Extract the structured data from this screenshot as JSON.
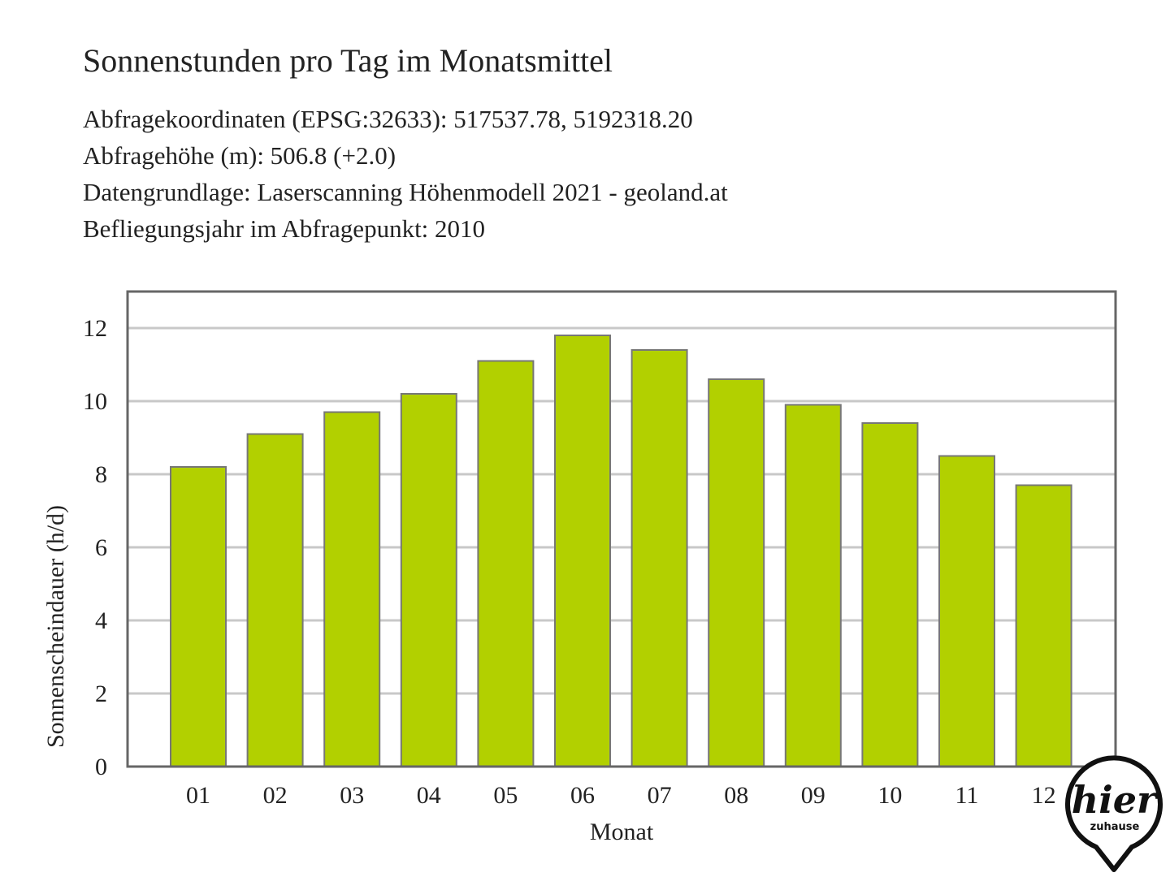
{
  "header": {
    "title": "Sonnenstunden pro Tag im Monatsmittel",
    "lines": [
      "Abfragekoordinaten (EPSG:32633): 517537.78, 5192318.20",
      "Abfragehöhe (m): 506.8 (+2.0)",
      "Datengrundlage: Laserscanning Höhenmodell 2021 - geoland.at",
      "Befliegungsjahr im Abfragepunkt: 2010"
    ]
  },
  "chart_data": {
    "type": "bar",
    "categories": [
      "01",
      "02",
      "03",
      "04",
      "05",
      "06",
      "07",
      "08",
      "09",
      "10",
      "11",
      "12"
    ],
    "values": [
      8.2,
      9.1,
      9.7,
      10.2,
      11.1,
      11.8,
      11.4,
      10.6,
      9.9,
      9.4,
      8.5,
      7.7
    ],
    "xlabel": "Monat",
    "ylabel": "Sonnenscheindauer (h/d)",
    "ylim": [
      0,
      13
    ],
    "yticks": [
      0,
      2,
      4,
      6,
      8,
      10,
      12
    ],
    "grid": true,
    "bar_color": "#b2d000",
    "bar_edge_color": "#777777",
    "grid_color": "#c8c8c8"
  },
  "logo": {
    "wordmark": "hier",
    "tagline": "zuhause",
    "icon": "location-pin-icon"
  }
}
